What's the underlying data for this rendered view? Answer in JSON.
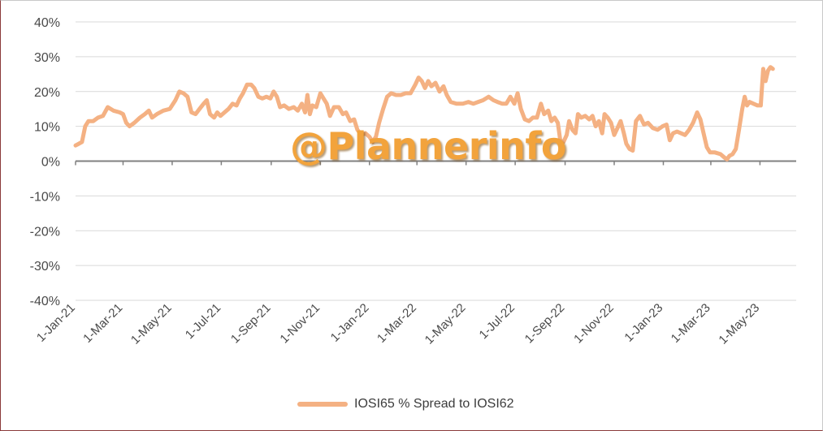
{
  "chart_data": {
    "type": "line",
    "title": "",
    "xlabel": "",
    "ylabel": "",
    "y_unit": "%",
    "ylim": [
      -40,
      40
    ],
    "yticks": [
      40,
      30,
      20,
      10,
      0,
      -10,
      -20,
      -30,
      -40
    ],
    "ytick_labels": [
      "40%",
      "30%",
      "20%",
      "10%",
      "0%",
      "-10%",
      "-20%",
      "-30%",
      "-40%"
    ],
    "xlim": [
      "2021-01-01",
      "2023-06-15"
    ],
    "xticks": [
      "2021-01-01",
      "2021-03-01",
      "2021-05-01",
      "2021-07-01",
      "2021-09-01",
      "2021-11-01",
      "2022-01-01",
      "2022-03-01",
      "2022-05-01",
      "2022-07-01",
      "2022-09-01",
      "2022-11-01",
      "2023-01-01",
      "2023-03-01",
      "2023-05-01"
    ],
    "xtick_labels": [
      "1-Jan-21",
      "1-Mar-21",
      "1-May-21",
      "1-Jul-21",
      "1-Sep-21",
      "1-Nov-21",
      "1-Jan-22",
      "1-Mar-22",
      "1-May-22",
      "1-Jul-22",
      "1-Sep-22",
      "1-Nov-22",
      "1-Jan-23",
      "1-Mar-23",
      "1-May-23"
    ],
    "grid": "horizontal",
    "legend_position": "bottom",
    "series": [
      {
        "name": "IOSI65 % Spread to IOSI62",
        "color": "#f4b183",
        "points": [
          [
            "2021-01-01",
            4.5
          ],
          [
            "2021-01-05",
            5
          ],
          [
            "2021-01-09",
            5.5
          ],
          [
            "2021-01-13",
            10
          ],
          [
            "2021-01-17",
            11.5
          ],
          [
            "2021-01-23",
            11.5
          ],
          [
            "2021-01-29",
            12.5
          ],
          [
            "2021-02-04",
            13
          ],
          [
            "2021-02-10",
            15.5
          ],
          [
            "2021-02-17",
            14.5
          ],
          [
            "2021-02-25",
            14
          ],
          [
            "2021-03-01",
            13.5
          ],
          [
            "2021-03-05",
            11
          ],
          [
            "2021-03-09",
            10
          ],
          [
            "2021-03-15",
            11
          ],
          [
            "2021-03-22",
            12.5
          ],
          [
            "2021-03-28",
            13.5
          ],
          [
            "2021-04-02",
            14.5
          ],
          [
            "2021-04-06",
            12.5
          ],
          [
            "2021-04-12",
            13.5
          ],
          [
            "2021-04-20",
            14.5
          ],
          [
            "2021-04-28",
            15
          ],
          [
            "2021-05-05",
            17.5
          ],
          [
            "2021-05-10",
            20
          ],
          [
            "2021-05-15",
            19.5
          ],
          [
            "2021-05-20",
            18.5
          ],
          [
            "2021-05-25",
            14
          ],
          [
            "2021-05-30",
            13.5
          ],
          [
            "2021-06-04",
            15
          ],
          [
            "2021-06-09",
            16.5
          ],
          [
            "2021-06-13",
            17.5
          ],
          [
            "2021-06-17",
            13.5
          ],
          [
            "2021-06-22",
            12.5
          ],
          [
            "2021-06-26",
            14
          ],
          [
            "2021-06-30",
            13
          ],
          [
            "2021-07-05",
            14
          ],
          [
            "2021-07-10",
            15
          ],
          [
            "2021-07-15",
            16.5
          ],
          [
            "2021-07-20",
            16
          ],
          [
            "2021-07-24",
            18
          ],
          [
            "2021-07-28",
            19.5
          ],
          [
            "2021-08-02",
            22
          ],
          [
            "2021-08-07",
            22
          ],
          [
            "2021-08-11",
            21
          ],
          [
            "2021-08-16",
            18.5
          ],
          [
            "2021-08-21",
            18
          ],
          [
            "2021-08-26",
            18.5
          ],
          [
            "2021-08-31",
            18
          ],
          [
            "2021-09-04",
            20
          ],
          [
            "2021-09-08",
            18.5
          ],
          [
            "2021-09-12",
            15.5
          ],
          [
            "2021-09-17",
            16
          ],
          [
            "2021-09-23",
            15
          ],
          [
            "2021-09-29",
            15.5
          ],
          [
            "2021-10-04",
            14.5
          ],
          [
            "2021-10-09",
            16.5
          ],
          [
            "2021-10-13",
            14
          ],
          [
            "2021-10-16",
            19
          ],
          [
            "2021-10-19",
            13.5
          ],
          [
            "2021-10-22",
            16
          ],
          [
            "2021-10-27",
            15.5
          ],
          [
            "2021-11-01",
            19.5
          ],
          [
            "2021-11-05",
            18
          ],
          [
            "2021-11-09",
            16.5
          ],
          [
            "2021-11-13",
            13
          ],
          [
            "2021-11-18",
            15.5
          ],
          [
            "2021-11-24",
            15.5
          ],
          [
            "2021-11-29",
            13.5
          ],
          [
            "2021-12-03",
            14
          ],
          [
            "2021-12-08",
            11.5
          ],
          [
            "2021-12-13",
            12
          ],
          [
            "2021-12-17",
            9
          ],
          [
            "2021-12-22",
            7.5
          ],
          [
            "2021-12-27",
            8
          ],
          [
            "2022-01-01",
            7
          ],
          [
            "2022-01-05",
            5.5
          ],
          [
            "2022-01-09",
            7
          ],
          [
            "2022-01-13",
            11
          ],
          [
            "2022-01-18",
            15
          ],
          [
            "2022-01-23",
            18.5
          ],
          [
            "2022-01-28",
            19.5
          ],
          [
            "2022-02-03",
            19
          ],
          [
            "2022-02-09",
            19
          ],
          [
            "2022-02-15",
            19.5
          ],
          [
            "2022-02-21",
            19.5
          ],
          [
            "2022-02-27",
            22
          ],
          [
            "2022-03-03",
            24
          ],
          [
            "2022-03-07",
            23
          ],
          [
            "2022-03-11",
            21
          ],
          [
            "2022-03-15",
            23
          ],
          [
            "2022-03-19",
            21.5
          ],
          [
            "2022-03-24",
            22.5
          ],
          [
            "2022-03-29",
            20
          ],
          [
            "2022-04-03",
            21.5
          ],
          [
            "2022-04-07",
            19
          ],
          [
            "2022-04-12",
            17
          ],
          [
            "2022-04-19",
            16.5
          ],
          [
            "2022-04-27",
            16.5
          ],
          [
            "2022-05-04",
            17
          ],
          [
            "2022-05-10",
            16.5
          ],
          [
            "2022-05-16",
            17
          ],
          [
            "2022-05-22",
            17.5
          ],
          [
            "2022-05-29",
            18.5
          ],
          [
            "2022-06-04",
            17.5
          ],
          [
            "2022-06-09",
            17
          ],
          [
            "2022-06-15",
            16.5
          ],
          [
            "2022-06-20",
            16.5
          ],
          [
            "2022-06-25",
            18.5
          ],
          [
            "2022-06-30",
            16.5
          ],
          [
            "2022-07-04",
            19.5
          ],
          [
            "2022-07-08",
            15
          ],
          [
            "2022-07-13",
            12
          ],
          [
            "2022-07-18",
            11.5
          ],
          [
            "2022-07-23",
            12.5
          ],
          [
            "2022-07-28",
            12.5
          ],
          [
            "2022-08-02",
            16.5
          ],
          [
            "2022-08-06",
            13.5
          ],
          [
            "2022-08-11",
            14.5
          ],
          [
            "2022-08-15",
            11.5
          ],
          [
            "2022-08-19",
            12.5
          ],
          [
            "2022-08-23",
            11
          ],
          [
            "2022-08-26",
            6
          ],
          [
            "2022-08-30",
            5.5
          ],
          [
            "2022-09-03",
            7.5
          ],
          [
            "2022-09-06",
            11.5
          ],
          [
            "2022-09-10",
            9
          ],
          [
            "2022-09-14",
            8
          ],
          [
            "2022-09-17",
            13.5
          ],
          [
            "2022-09-21",
            12.5
          ],
          [
            "2022-09-26",
            13
          ],
          [
            "2022-10-01",
            12
          ],
          [
            "2022-10-05",
            13
          ],
          [
            "2022-10-09",
            10
          ],
          [
            "2022-10-13",
            11.5
          ],
          [
            "2022-10-17",
            8
          ],
          [
            "2022-10-20",
            13.5
          ],
          [
            "2022-10-24",
            12.5
          ],
          [
            "2022-10-28",
            11
          ],
          [
            "2022-11-01",
            7.5
          ],
          [
            "2022-11-05",
            9.5
          ],
          [
            "2022-11-09",
            11.5
          ],
          [
            "2022-11-13",
            8
          ],
          [
            "2022-11-16",
            5
          ],
          [
            "2022-11-20",
            3.5
          ],
          [
            "2022-11-24",
            3
          ],
          [
            "2022-11-28",
            11.5
          ],
          [
            "2022-12-03",
            13
          ],
          [
            "2022-12-08",
            10.5
          ],
          [
            "2022-12-13",
            11
          ],
          [
            "2022-12-19",
            9.5
          ],
          [
            "2022-12-25",
            9
          ],
          [
            "2022-12-31",
            10
          ],
          [
            "2023-01-05",
            10.5
          ],
          [
            "2023-01-09",
            6
          ],
          [
            "2023-01-13",
            8
          ],
          [
            "2023-01-18",
            8.5
          ],
          [
            "2023-01-23",
            8
          ],
          [
            "2023-01-28",
            7.5
          ],
          [
            "2023-02-02",
            9
          ],
          [
            "2023-02-07",
            11
          ],
          [
            "2023-02-12",
            14
          ],
          [
            "2023-02-16",
            12
          ],
          [
            "2023-02-20",
            8
          ],
          [
            "2023-02-24",
            4
          ],
          [
            "2023-02-28",
            2.5
          ],
          [
            "2023-03-06",
            2.5
          ],
          [
            "2023-03-13",
            2
          ],
          [
            "2023-03-18",
            1
          ],
          [
            "2023-03-21",
            0.5
          ],
          [
            "2023-03-24",
            1.5
          ],
          [
            "2023-03-28",
            2
          ],
          [
            "2023-04-01",
            3.5
          ],
          [
            "2023-04-05",
            9
          ],
          [
            "2023-04-09",
            15
          ],
          [
            "2023-04-12",
            18.5
          ],
          [
            "2023-04-15",
            16
          ],
          [
            "2023-04-18",
            17
          ],
          [
            "2023-04-23",
            16.5
          ],
          [
            "2023-04-28",
            16
          ],
          [
            "2023-05-02",
            16
          ],
          [
            "2023-05-05",
            26.5
          ],
          [
            "2023-05-08",
            23
          ],
          [
            "2023-05-11",
            26
          ],
          [
            "2023-05-14",
            27
          ],
          [
            "2023-05-17",
            26.5
          ]
        ]
      }
    ]
  },
  "legend": {
    "label": "IOSI65 % Spread to IOSI62"
  },
  "watermark": {
    "text": "@Plannerinfo"
  }
}
